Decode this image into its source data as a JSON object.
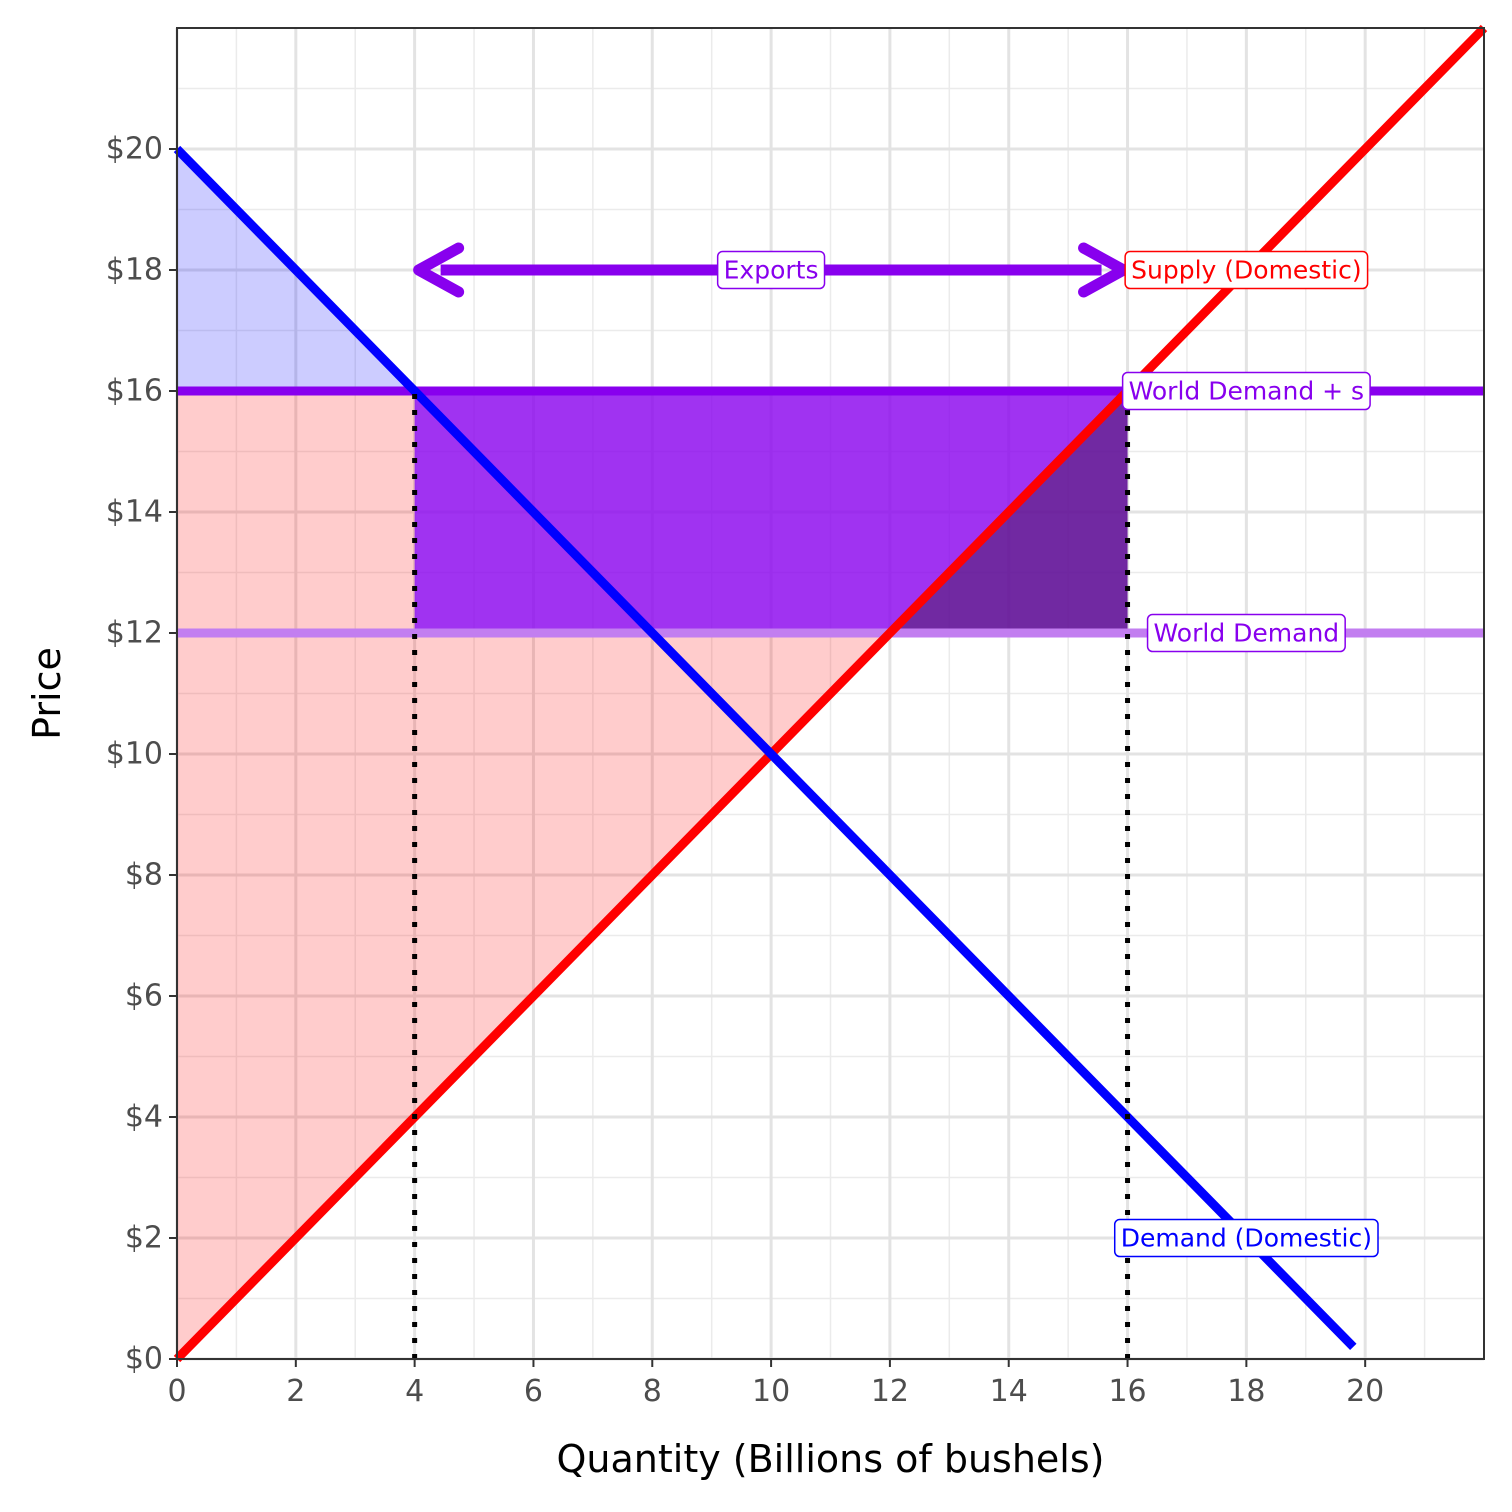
{
  "chart_data": {
    "type": "line",
    "xlabel": "Quantity (Billions of bushels)",
    "ylabel": "Price",
    "xlim": [
      0,
      22
    ],
    "ylim": [
      0,
      22
    ],
    "x_ticks": [
      0,
      2,
      4,
      6,
      8,
      10,
      12,
      14,
      16,
      18,
      20
    ],
    "y_ticks": [
      0,
      2,
      4,
      6,
      8,
      10,
      12,
      14,
      16,
      18,
      20
    ],
    "x_tick_labels": [
      "0",
      "2",
      "4",
      "6",
      "8",
      "10",
      "12",
      "14",
      "16",
      "18",
      "20"
    ],
    "y_tick_labels": [
      "$0",
      "$2",
      "$4",
      "$6",
      "$8",
      "$10",
      "$12",
      "$14",
      "$16",
      "$18",
      "$20"
    ],
    "grid": true,
    "colors": {
      "supply": "#ff0000",
      "demand": "#0000ff",
      "world": "#8800ee",
      "world_light": "#c27ef0"
    },
    "series": [
      {
        "name": "Supply (Domestic)",
        "color": "#ff0000",
        "x": [
          0,
          22
        ],
        "y": [
          0,
          22
        ]
      },
      {
        "name": "Demand (Domestic)",
        "color": "#0000ff",
        "x": [
          0,
          19.8
        ],
        "y": [
          20,
          0.2
        ]
      },
      {
        "name": "World Demand + s",
        "color": "#8800ee",
        "x": [
          0,
          22
        ],
        "y": [
          16,
          16
        ]
      },
      {
        "name": "World Demand",
        "color": "#c27ef0",
        "x": [
          0,
          22
        ],
        "y": [
          12,
          12
        ]
      }
    ],
    "labels": [
      {
        "id": "supply",
        "text": "Supply (Domestic)",
        "x": 18,
        "y": 18,
        "color": "#ff0000"
      },
      {
        "id": "world_s",
        "text": "World Demand + s",
        "x": 18,
        "y": 16,
        "color": "#8800ee"
      },
      {
        "id": "world",
        "text": "World Demand",
        "x": 18,
        "y": 12,
        "color": "#8800ee"
      },
      {
        "id": "demand",
        "text": "Demand (Domestic)",
        "x": 18,
        "y": 2,
        "color": "#0000ff"
      },
      {
        "id": "exports",
        "text": "Exports",
        "x": 10,
        "y": 18,
        "color": "#8800ee"
      }
    ],
    "exports_arrow": {
      "x_from": 4,
      "x_to": 16,
      "y": 18
    },
    "reference_lines": [
      {
        "x": 4,
        "y_max": 16
      },
      {
        "x": 16,
        "y_max": 16
      }
    ],
    "regions": [
      {
        "id": "consumer-surplus",
        "color": "#0000ff",
        "opacity": 0.2,
        "points": [
          [
            0,
            20
          ],
          [
            4,
            16
          ],
          [
            0,
            16
          ]
        ]
      },
      {
        "id": "producer-surplus",
        "color": "#ff0000",
        "opacity": 0.2,
        "points": [
          [
            0,
            0
          ],
          [
            0,
            16
          ],
          [
            4,
            16
          ],
          [
            4,
            12
          ],
          [
            12,
            12
          ]
        ]
      },
      {
        "id": "subsidy-cost",
        "color": "#8800ee",
        "opacity": 0.8,
        "points": [
          [
            4,
            12
          ],
          [
            16,
            12
          ],
          [
            16,
            16
          ],
          [
            4,
            16
          ]
        ]
      },
      {
        "id": "deadweight-loss",
        "color": "#4a2060",
        "opacity": 0.55,
        "points": [
          [
            12,
            12
          ],
          [
            16,
            12
          ],
          [
            16,
            16
          ]
        ]
      }
    ]
  }
}
